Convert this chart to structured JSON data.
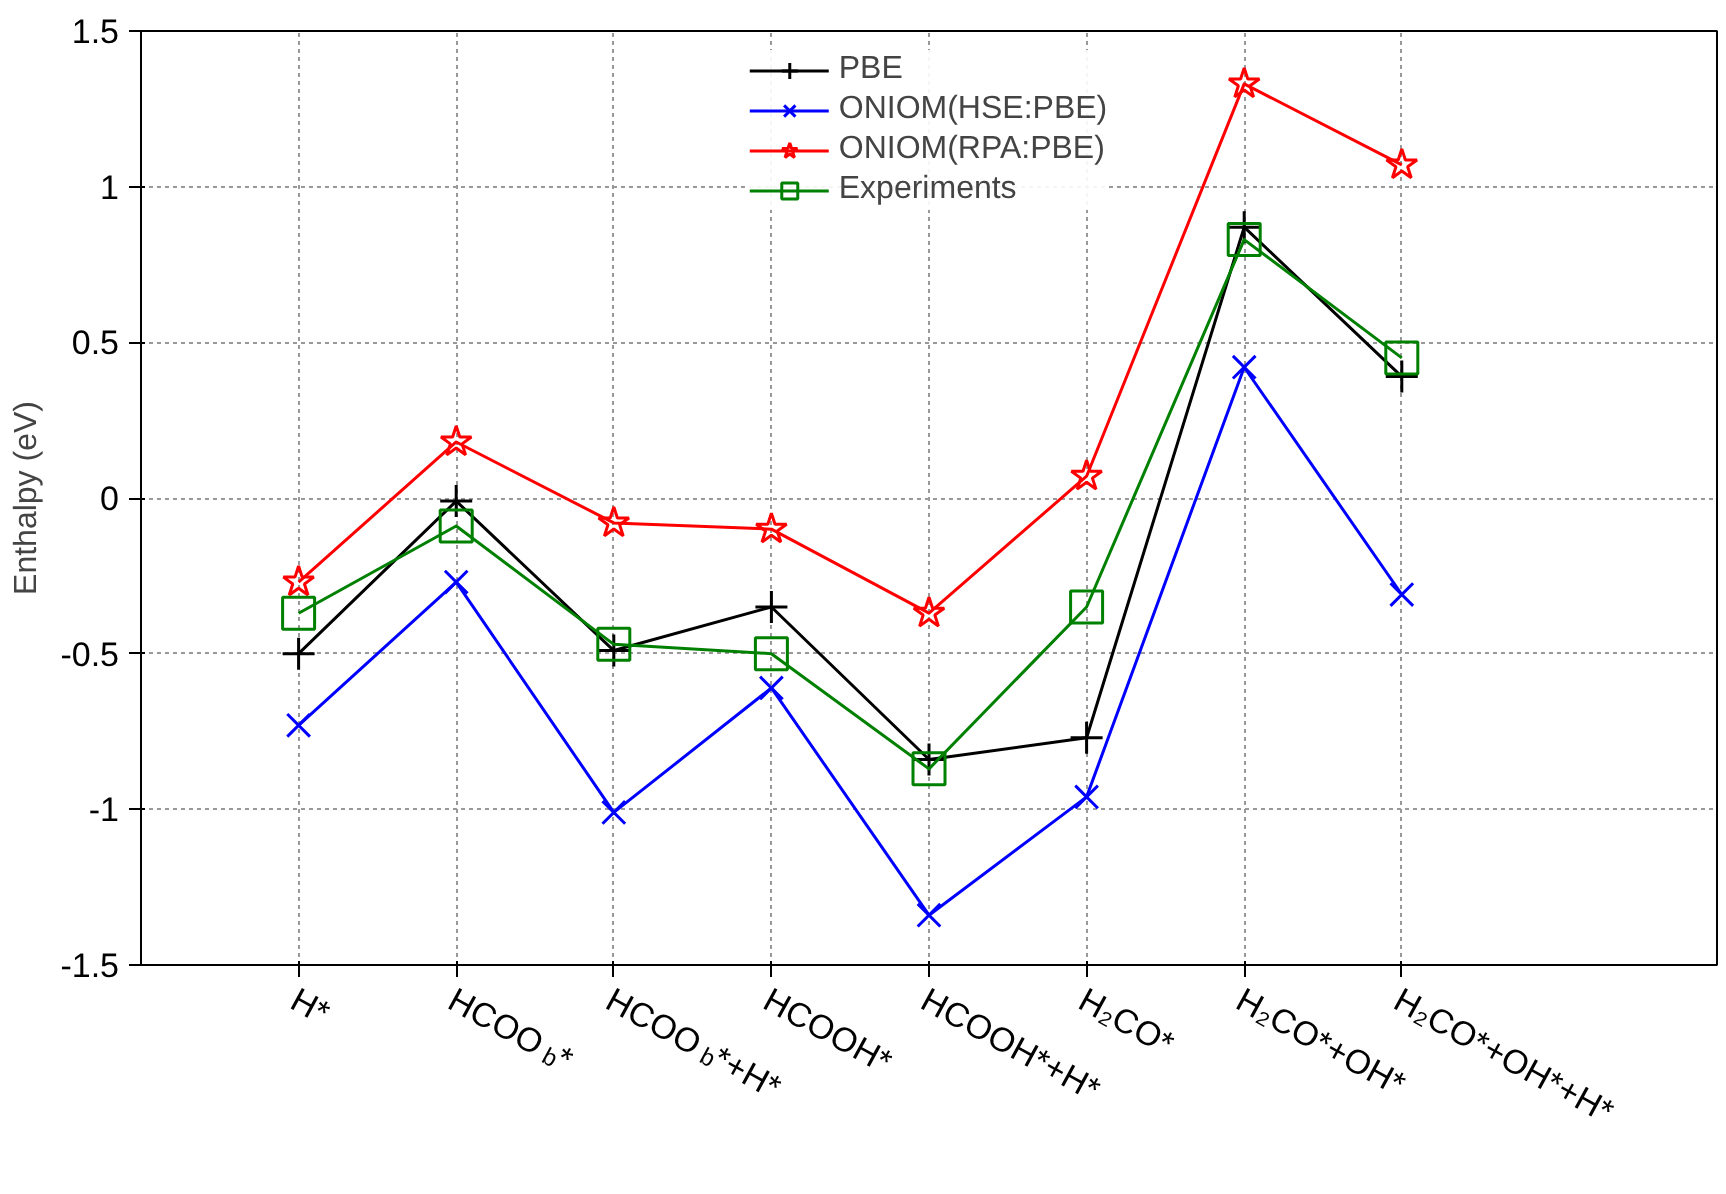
{
  "chart_data": {
    "type": "line",
    "ylabel": "Enthalpy (eV)",
    "categories": [
      "H*",
      "HCOO$_{b}$ *",
      "HCOO$_{b}$ *+H*",
      "HCOOH*",
      "HCOOH*+H*",
      "H₂CO*",
      "H₂CO*+OH*",
      "H₂CO*+OH*+H*"
    ],
    "series": [
      {
        "name": "PBE",
        "color": "#000000",
        "marker": "cross",
        "values": [
          -0.5,
          -0.01,
          -0.49,
          -0.35,
          -0.84,
          -0.77,
          0.87,
          0.39
        ]
      },
      {
        "name": "ONIOM(HSE:PBE)",
        "color": "#0000ff",
        "marker": "x",
        "values": [
          -0.73,
          -0.27,
          -1.01,
          -0.61,
          -1.34,
          -0.96,
          0.42,
          -0.31
        ]
      },
      {
        "name": "ONIOM(RPA:PBE)",
        "color": "#ff0000",
        "marker": "star",
        "values": [
          -0.27,
          0.18,
          -0.08,
          -0.1,
          -0.37,
          0.07,
          1.33,
          1.07
        ]
      },
      {
        "name": "Experiments",
        "color": "#008000",
        "marker": "square",
        "values": [
          -0.37,
          -0.09,
          -0.47,
          -0.5,
          -0.87,
          -0.35,
          0.83,
          0.45
        ]
      }
    ],
    "ylim": [
      -1.5,
      1.5
    ],
    "yticks": [
      -1.5,
      -1,
      -0.5,
      0,
      0.5,
      1,
      1.5
    ],
    "grid": true,
    "legend": "top",
    "line_style": "solid"
  }
}
